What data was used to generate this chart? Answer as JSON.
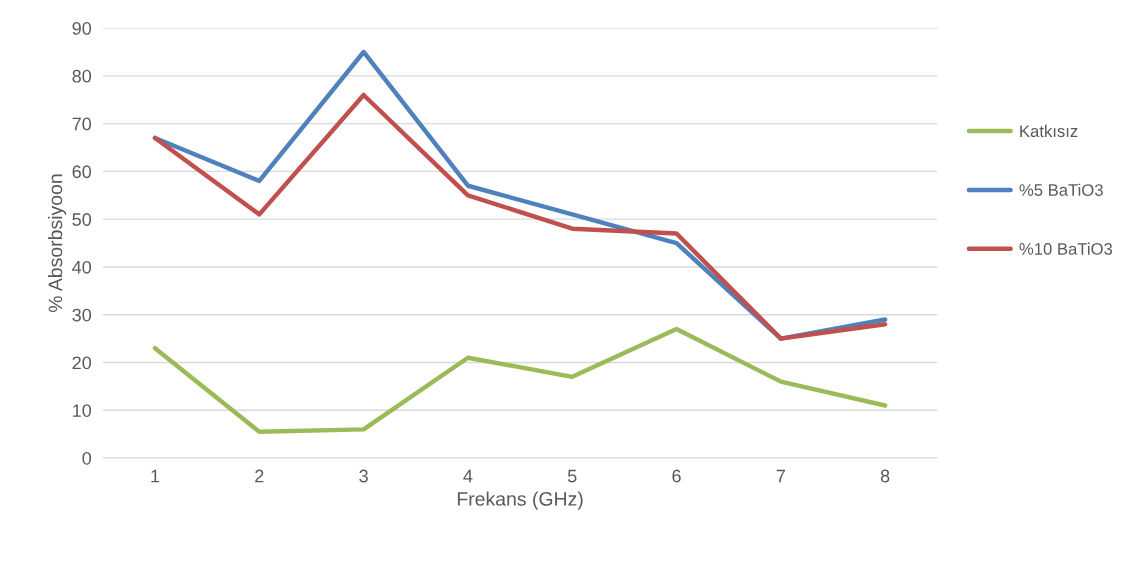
{
  "chart_data": {
    "type": "line",
    "xlabel": "Frekans (GHz)",
    "ylabel": "% Absorbsiyoon",
    "categories": [
      "1",
      "2",
      "3",
      "4",
      "5",
      "6",
      "7",
      "8"
    ],
    "series": [
      {
        "name": "Katkısız",
        "color": "#9bbb59",
        "values": [
          23,
          5.5,
          6,
          21,
          17,
          27,
          16,
          11
        ]
      },
      {
        "name": "%5 BaTiO3",
        "color": "#4f81bd",
        "values": [
          67,
          58,
          85,
          57,
          51,
          45,
          25,
          29
        ]
      },
      {
        "name": "%10 BaTiO3",
        "color": "#c0504d",
        "values": [
          67,
          51,
          76,
          55,
          48,
          47,
          25,
          28
        ]
      }
    ],
    "ylim": [
      0,
      90
    ],
    "yticks": [
      0,
      10,
      20,
      30,
      40,
      50,
      60,
      70,
      80,
      90
    ],
    "grid": "y",
    "legend": "right",
    "marker": "none",
    "line_style": "solid"
  }
}
